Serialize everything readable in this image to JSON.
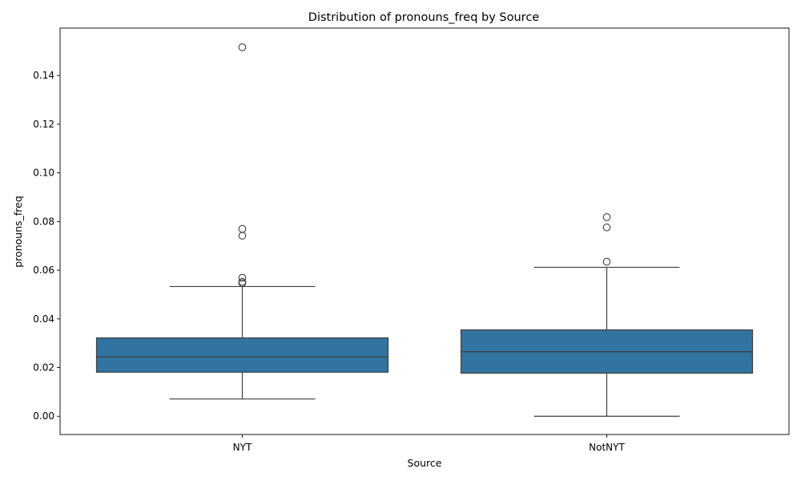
{
  "chart_data": {
    "type": "box",
    "title": "Distribution of pronouns_freq by Source",
    "xlabel": "Source",
    "ylabel": "pronouns_freq",
    "ylim": [
      -0.0075,
      0.1595
    ],
    "yticks": [
      "0.00",
      "0.02",
      "0.04",
      "0.06",
      "0.08",
      "0.10",
      "0.12",
      "0.14"
    ],
    "grid": false,
    "legend": "none",
    "box_color": "#3274a1",
    "line_color": "#3f3f3f",
    "categories": [
      "NYT",
      "NotNYT"
    ],
    "boxes": [
      {
        "category": "NYT",
        "whisker_low": 0.0071,
        "q1": 0.0181,
        "median": 0.0244,
        "q3": 0.0322,
        "whisker_high": 0.0533,
        "outliers": [
          0.1516,
          0.077,
          0.0742,
          0.0569,
          0.0552,
          0.0547
        ]
      },
      {
        "category": "NotNYT",
        "whisker_low": 0.0,
        "q1": 0.0177,
        "median": 0.0265,
        "q3": 0.0355,
        "whisker_high": 0.0612,
        "outliers": [
          0.0818,
          0.0776,
          0.0635
        ]
      }
    ]
  }
}
